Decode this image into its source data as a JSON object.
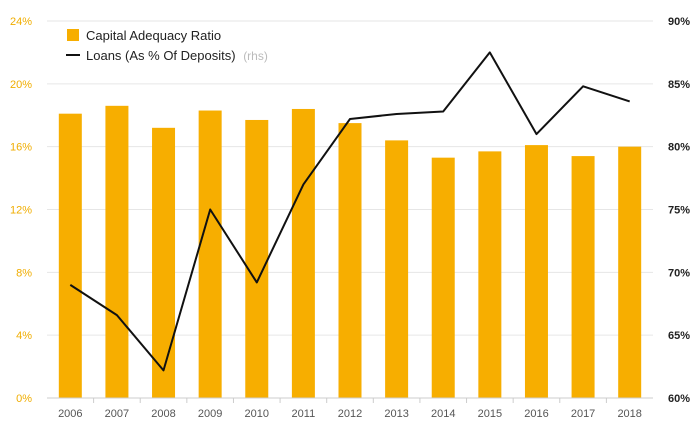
{
  "chart_data": {
    "type": "bar",
    "categories": [
      "2006",
      "2007",
      "2008",
      "2009",
      "2010",
      "2011",
      "2012",
      "2013",
      "2014",
      "2015",
      "2016",
      "2017",
      "2018"
    ],
    "series": [
      {
        "name": "Capital Adequacy Ratio",
        "type": "bar",
        "axis": "left",
        "color": "#f7ae00",
        "values": [
          18.1,
          18.6,
          17.2,
          18.3,
          17.7,
          18.4,
          17.5,
          16.4,
          15.3,
          15.7,
          16.1,
          15.4,
          16.0
        ]
      },
      {
        "name": "Loans (As % Of Deposits)",
        "name_suffix": "(rhs)",
        "type": "line",
        "axis": "right",
        "color": "#111111",
        "values": [
          69.0,
          66.6,
          62.2,
          75.0,
          69.2,
          77.0,
          82.2,
          82.6,
          82.8,
          87.5,
          81.0,
          84.8,
          83.6
        ]
      }
    ],
    "y_left": {
      "ylim": [
        0,
        24
      ],
      "ticks": [
        "0%",
        "4%",
        "8%",
        "12%",
        "16%",
        "20%",
        "24%"
      ],
      "color": "#f0ad00"
    },
    "y_right": {
      "ylim": [
        60,
        90
      ],
      "ticks": [
        "60%",
        "65%",
        "70%",
        "75%",
        "80%",
        "85%",
        "90%"
      ],
      "color": "#222222"
    },
    "grid": true,
    "legend": "top-left",
    "title": "",
    "xlabel": "",
    "ylabel": ""
  }
}
